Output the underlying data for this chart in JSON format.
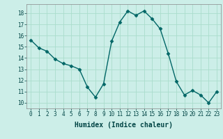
{
  "x": [
    0,
    1,
    2,
    3,
    4,
    5,
    6,
    7,
    8,
    9,
    10,
    11,
    12,
    13,
    14,
    15,
    16,
    17,
    18,
    19,
    20,
    21,
    22,
    23
  ],
  "y": [
    15.6,
    14.9,
    14.6,
    13.9,
    13.5,
    13.3,
    13.0,
    11.4,
    10.5,
    11.7,
    15.5,
    17.2,
    18.2,
    17.8,
    18.2,
    17.5,
    16.6,
    14.4,
    11.9,
    10.7,
    11.1,
    10.7,
    10.0,
    11.0
  ],
  "line_color": "#006666",
  "marker": "D",
  "marker_size": 2.5,
  "bg_color": "#cceee8",
  "grid_color": "#aaddcc",
  "xlabel": "Humidex (Indice chaleur)",
  "ylim": [
    9.5,
    18.8
  ],
  "xlim": [
    -0.5,
    23.5
  ],
  "yticks": [
    10,
    11,
    12,
    13,
    14,
    15,
    16,
    17,
    18
  ],
  "xticks": [
    0,
    1,
    2,
    3,
    4,
    5,
    6,
    7,
    8,
    9,
    10,
    11,
    12,
    13,
    14,
    15,
    16,
    17,
    18,
    19,
    20,
    21,
    22,
    23
  ],
  "tick_fontsize": 5.5,
  "xlabel_fontsize": 7,
  "linewidth": 1.0
}
